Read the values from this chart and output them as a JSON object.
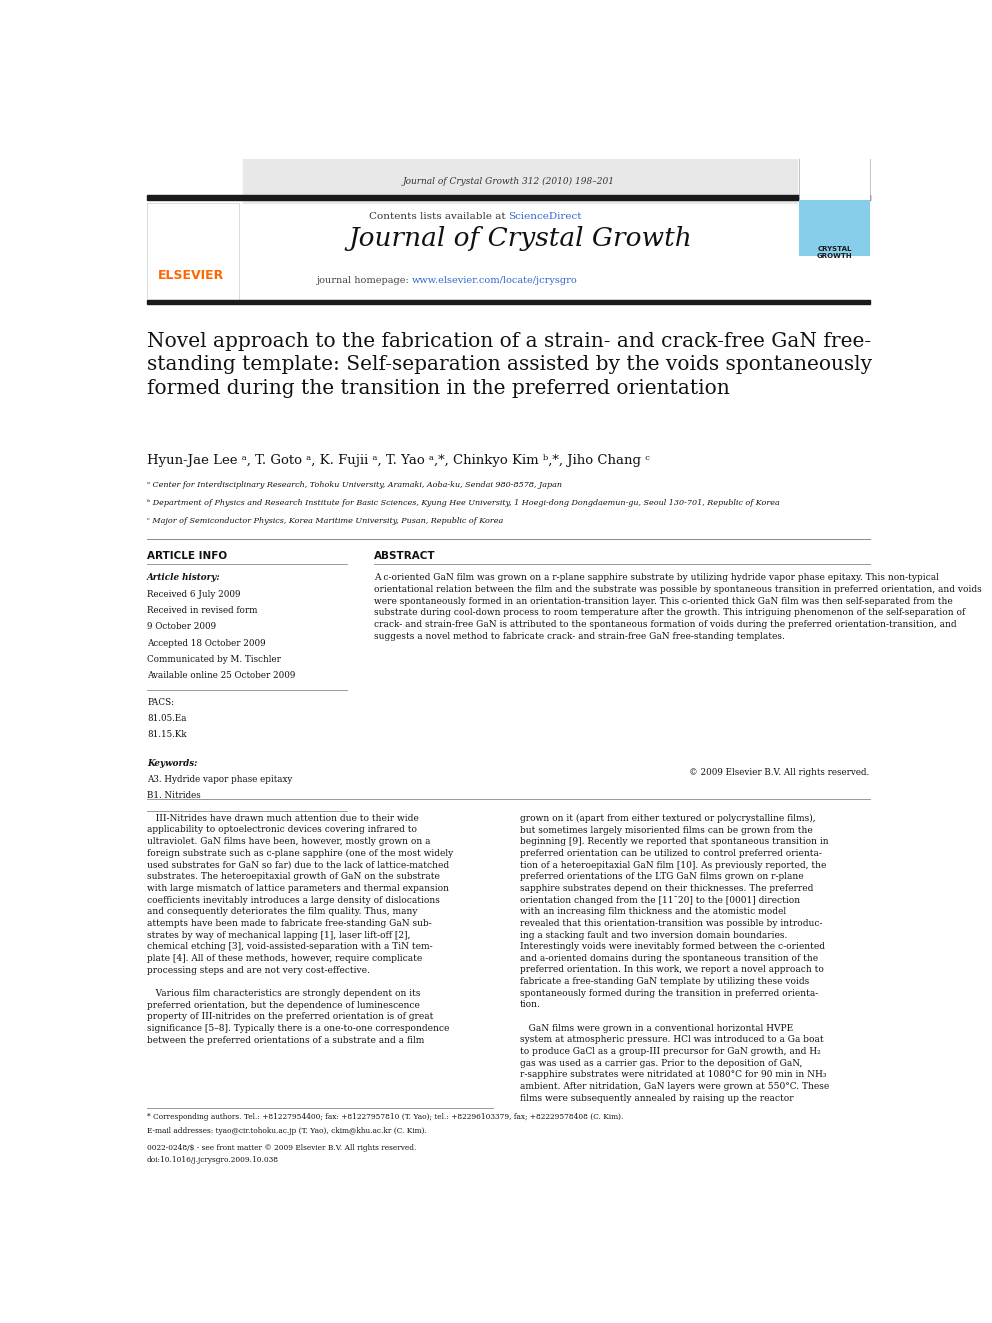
{
  "page_width": 9.92,
  "page_height": 13.23,
  "bg_color": "#ffffff",
  "header_journal_ref": "Journal of Crystal Growth 312 (2010) 198–201",
  "header_bg": "#e8e8e8",
  "header_contents": "Contents lists available at ",
  "header_sciencedirect": "ScienceDirect",
  "header_sciencedirect_color": "#3366cc",
  "journal_name": "Journal of Crystal Growth",
  "journal_homepage_label": "journal homepage: ",
  "journal_homepage_url": "www.elsevier.com/locate/jcrysgro",
  "journal_homepage_url_color": "#3366cc",
  "elsevier_color": "#ff6600",
  "header_bar_color": "#1a1a1a",
  "crystal_growth_box_bg": "#87ceeb",
  "article_title": "Novel approach to the fabrication of a strain- and crack-free GaN free-\nstanding template: Self-separation assisted by the voids spontaneously\nformed during the transition in the preferred orientation",
  "authors": "Hyun-Jae Lee ᵃ, T. Goto ᵃ, K. Fujii ᵃ, T. Yao ᵃ,*, Chinkyo Kim ᵇ,*, Jiho Chang ᶜ",
  "affil_a": "ᵃ Center for Interdisciplinary Research, Tohoku University, Aramaki, Aoba-ku, Sendai 980-8578, Japan",
  "affil_b": "ᵇ Department of Physics and Research Institute for Basic Sciences, Kyung Hee University, 1 Hoegi-dong Dongdaemun-gu, Seoul 130-701, Republic of Korea",
  "affil_c": "ᶜ Major of Semiconductor Physics, Korea Maritime University, Pusan, Republic of Korea",
  "article_info_title": "ARTICLE INFO",
  "abstract_title": "ABSTRACT",
  "article_history_label": "Article history:",
  "received_1": "Received 6 July 2009",
  "received_revised": "Received in revised form",
  "received_revised_date": "9 October 2009",
  "accepted": "Accepted 18 October 2009",
  "communicated": "Communicated by M. Tischler",
  "available": "Available online 25 October 2009",
  "pacs_label": "PACS:",
  "pacs_1": "81.05.Ea",
  "pacs_2": "81.15.Kk",
  "keywords_label": "Keywords:",
  "keyword_1": "A3. Hydride vapor phase epitaxy",
  "keyword_2": "B1. Nitrides",
  "abstract_text": "A c-oriented GaN film was grown on a r-plane sapphire substrate by utilizing hydride vapor phase epitaxy. This non-typical orientational relation between the film and the substrate was possible by spontaneous transition in preferred orientation, and voids were spontaneously formed in an orientation-transition layer. This c-oriented thick GaN film was then self-separated from the substrate during cool-down process to room temperature after the growth. This intriguing phenomenon of the self-separation of crack- and strain-free GaN is attributed to the spontaneous formation of voids during the preferred orientation-transition, and suggests a novel method to fabricate crack- and strain-free GaN free-standing templates.",
  "copyright": "© 2009 Elsevier B.V. All rights reserved.",
  "body_left_col": "   III-Nitrides have drawn much attention due to their wide\napplicability to optoelectronic devices covering infrared to\nultraviolet. GaN films have been, however, mostly grown on a\nforeign substrate such as c-plane sapphire (one of the most widely\nused substrates for GaN so far) due to the lack of lattice-matched\nsubstrates. The heteroepitaxial growth of GaN on the substrate\nwith large mismatch of lattice parameters and thermal expansion\ncoefficients inevitably introduces a large density of dislocations\nand consequently deteriorates the film quality. Thus, many\nattempts have been made to fabricate free-standing GaN sub-\nstrates by way of mechanical lapping [1], laser lift-off [2],\nchemical etching [3], void-assisted-separation with a TiN tem-\nplate [4]. All of these methods, however, require complicate\nprocessing steps and are not very cost-effective.\n\n   Various film characteristics are strongly dependent on its\npreferred orientation, but the dependence of luminescence\nproperty of III-nitrides on the preferred orientation is of great\nsignificance [5–8]. Typically there is a one-to-one correspondence\nbetween the preferred orientations of a substrate and a film",
  "body_right_col": "grown on it (apart from either textured or polycrystalline films),\nbut sometimes largely misoriented films can be grown from the\nbeginning [9]. Recently we reported that spontaneous transition in\npreferred orientation can be utilized to control preferred orienta-\ntion of a heteroepitaxial GaN film [10]. As previously reported, the\npreferred orientations of the LTG GaN films grown on r-plane\nsapphire substrates depend on their thicknesses. The preferred\norientation changed from the [11¯20] to the [0001] direction\nwith an increasing film thickness and the atomistic model\nrevealed that this orientation-transition was possible by introduc-\ning a stacking fault and two inversion domain boundaries.\nInterestingly voids were inevitably formed between the c-oriented\nand a-oriented domains during the spontaneous transition of the\npreferred orientation. In this work, we report a novel approach to\nfabricate a free-standing GaN template by utilizing these voids\nspontaneously formed during the transition in preferred orienta-\ntion.\n\n   GaN films were grown in a conventional horizontal HVPE\nsystem at atmospheric pressure. HCl was introduced to a Ga boat\nto produce GaCl as a group-III precursor for GaN growth, and H₂\ngas was used as a carrier gas. Prior to the deposition of GaN,\nr-sapphire substrates were nitridated at 1080°C for 90 min in NH₃\nambient. After nitridation, GaN layers were grown at 550°C. These\nfilms were subsequently annealed by raising up the reactor",
  "footnote_star": "* Corresponding authors. Tel.: +81227954400; fax: +81227957810 (T. Yao); tel.: +82296103379, fax; +82229578408 (C. Kim).",
  "footnote_email": "E-mail addresses: tyao@cir.tohoku.ac.jp (T. Yao), ckim@khu.ac.kr (C. Kim).",
  "issn_line": "0022-0248/$ - see front matter © 2009 Elsevier B.V. All rights reserved.",
  "doi_line": "doi:10.1016/j.jcrysgro.2009.10.038"
}
